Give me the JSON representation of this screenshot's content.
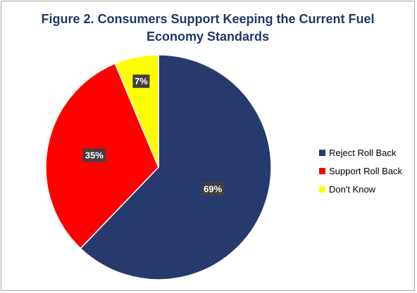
{
  "chart_data": {
    "type": "pie",
    "title": "Figure 2. Consumers Support Keeping the Current Fuel Economy Standards",
    "title_lines": [
      "Figure 2. Consumers Support Keeping the Current Fuel",
      "Economy Standards"
    ],
    "categories": [
      "Reject Roll Back",
      "Support Roll Back",
      "Don't Know"
    ],
    "values": [
      69,
      35,
      7
    ],
    "data_labels": [
      "69%",
      "35%",
      "7%"
    ],
    "colors": [
      "#273a6e",
      "#ff0000",
      "#ffff00"
    ],
    "legend_position": "right",
    "start_angle_deg": 0,
    "direction": "clockwise"
  },
  "style": {
    "title_color": "#1f3864",
    "label_bg": "#404040",
    "label_text": "#ffffff",
    "border_color": "#a6a6a6"
  }
}
